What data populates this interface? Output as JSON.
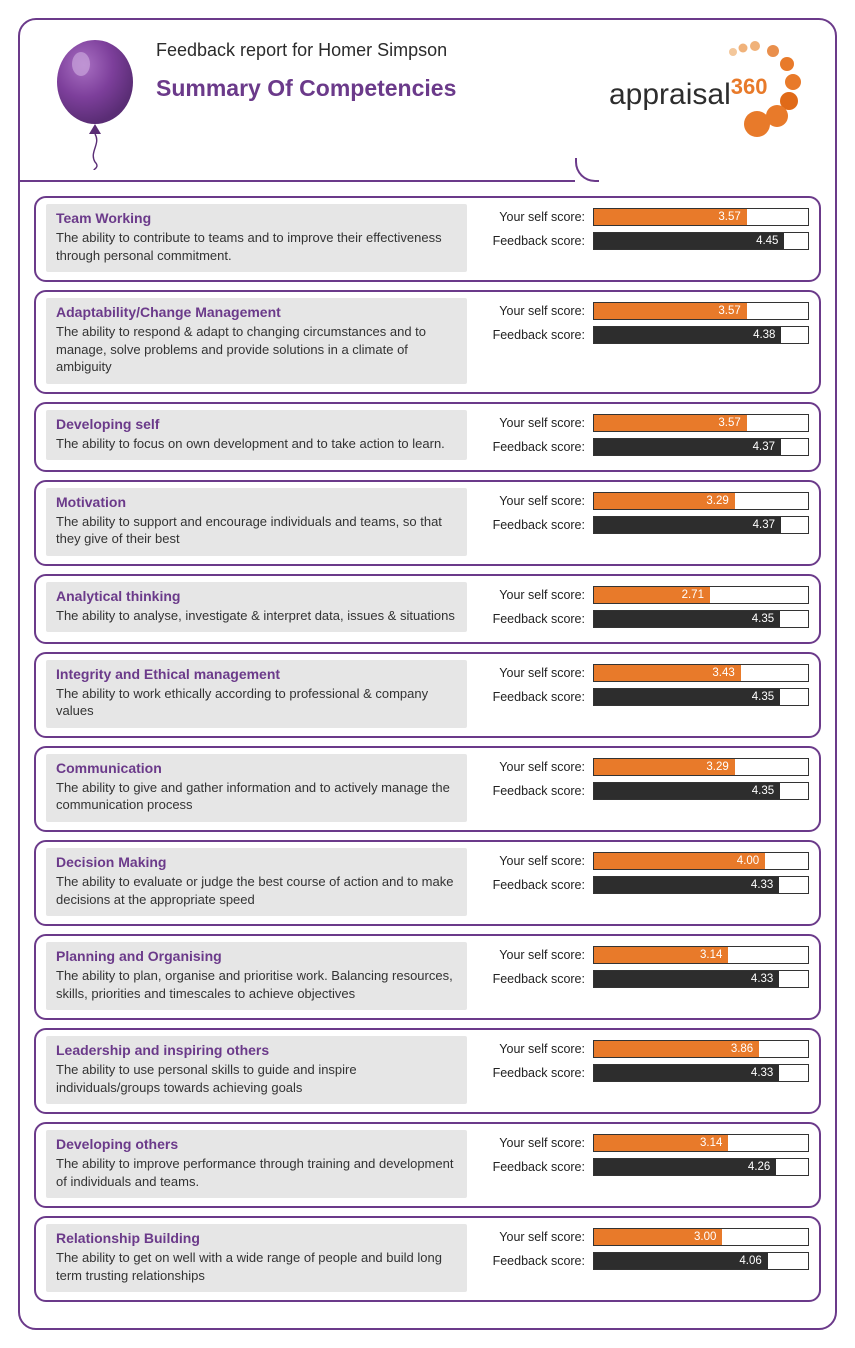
{
  "header": {
    "report_for": "Feedback report for Homer Simpson",
    "title": "Summary Of Competencies",
    "logo": {
      "word1": "appraisal",
      "word2": "360",
      "word1_color": "#2d2d2d",
      "word2_color": "#e87a2a"
    }
  },
  "colors": {
    "brand_purple": "#6b3a8a",
    "bar_self": "#e87a2a",
    "bar_feedback": "#2d2d2d",
    "card_left_bg": "#e6e6e6",
    "text": "#333333"
  },
  "score": {
    "max": 5,
    "self_label": "Your self score:",
    "feedback_label": "Feedback score:"
  },
  "competencies": [
    {
      "title": "Team Working",
      "desc": "The ability to contribute to teams and to improve their effectiveness through personal commitment.",
      "self": 3.57,
      "feedback": 4.45
    },
    {
      "title": "Adaptability/Change Management",
      "desc": "The ability to respond & adapt to changing circumstances and to manage, solve problems and provide solutions in a climate of ambiguity",
      "self": 3.57,
      "feedback": 4.38
    },
    {
      "title": "Developing self",
      "desc": "The ability to focus on own development and to take action to learn.",
      "self": 3.57,
      "feedback": 4.37
    },
    {
      "title": "Motivation",
      "desc": "The ability to support and encourage individuals and teams, so that they give of their best",
      "self": 3.29,
      "feedback": 4.37
    },
    {
      "title": "Analytical thinking",
      "desc": "The ability to analyse, investigate & interpret data, issues & situations",
      "self": 2.71,
      "feedback": 4.35
    },
    {
      "title": "Integrity and Ethical management",
      "desc": "The ability to work ethically according to professional & company values",
      "self": 3.43,
      "feedback": 4.35
    },
    {
      "title": "Communication",
      "desc": "The ability to give and gather information and to actively manage the communication process",
      "self": 3.29,
      "feedback": 4.35
    },
    {
      "title": "Decision Making",
      "desc": "The ability to evaluate or judge the best course of action and to make decisions at the appropriate speed",
      "self": 4.0,
      "feedback": 4.33
    },
    {
      "title": "Planning and Organising",
      "desc": "The ability to plan, organise and prioritise work. Balancing resources, skills, priorities and timescales to achieve objectives",
      "self": 3.14,
      "feedback": 4.33
    },
    {
      "title": "Leadership and inspiring others",
      "desc": "The ability to use personal skills to guide and inspire individuals/groups towards achieving goals",
      "self": 3.86,
      "feedback": 4.33
    },
    {
      "title": "Developing others",
      "desc": "The ability to improve performance through training and development of individuals and teams.",
      "self": 3.14,
      "feedback": 4.26
    },
    {
      "title": "Relationship Building",
      "desc": "The ability to get on well with a wide range of people and build long term trusting relationships",
      "self": 3.0,
      "feedback": 4.06
    }
  ]
}
